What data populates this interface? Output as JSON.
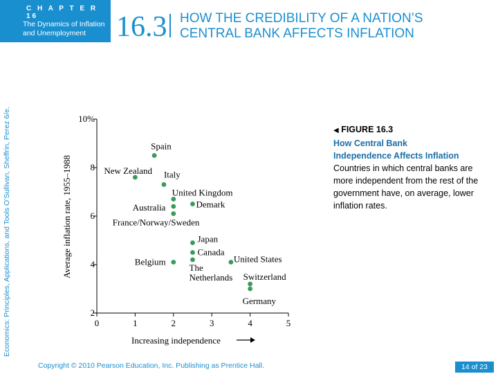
{
  "header": {
    "chapter_label": "C H A P T E R  16",
    "chapter_sub_line1": "The Dynamics of Inflation",
    "chapter_sub_line2": "and Unemployment",
    "section_number": "16.3",
    "section_title_line1": "HOW THE CREDIBILITY OF A NATION’S",
    "section_title_line2": "CENTRAL BANK AFFECTS INFLATION"
  },
  "side_text": "Economics: Principles, Applications, and Tools    O’Sullivan, Sheffrin, Perez    6/e.",
  "figure": {
    "label": "FIGURE 16.3",
    "title_line1": "How Central Bank",
    "title_line2": "Independence Affects Inflation",
    "caption": "Countries in which central banks are more independent from the rest of the government have, on average, lower inflation rates."
  },
  "footer": {
    "copyright": "Copyright © 2010  Pearson Education, Inc. Publishing as Prentice Hall.",
    "page": "14 of 23"
  },
  "colors": {
    "brand_blue": "#1a8fd0",
    "point_green": "#3a9a5a"
  },
  "chart_data": {
    "type": "scatter",
    "xlabel": "Increasing independence",
    "ylabel": "Average inflation rate, 1955–1988",
    "xlim": [
      0,
      5
    ],
    "ylim": [
      2,
      10
    ],
    "x_ticks": [
      "0",
      "1",
      "2",
      "3",
      "4",
      "5"
    ],
    "y_ticks": [
      "2",
      "4",
      "6",
      "8",
      "10%"
    ],
    "points": [
      {
        "label": "Spain",
        "x": 1.5,
        "y": 8.5
      },
      {
        "label": "New Zealand",
        "x": 1.0,
        "y": 7.6
      },
      {
        "label": "Italy",
        "x": 1.75,
        "y": 7.3
      },
      {
        "label": "United Kingdom",
        "x": 2.0,
        "y": 6.7
      },
      {
        "label": "Australia",
        "x": 2.0,
        "y": 6.4
      },
      {
        "label": "Demark",
        "x": 2.5,
        "y": 6.5
      },
      {
        "label": "France/Norway/Sweden",
        "x": 2.0,
        "y": 6.1
      },
      {
        "label": "Japan",
        "x": 2.5,
        "y": 4.9
      },
      {
        "label": "Canada",
        "x": 2.5,
        "y": 4.5
      },
      {
        "label": "Belgium",
        "x": 2.0,
        "y": 4.1
      },
      {
        "label": "The Netherlands",
        "x": 2.5,
        "y": 4.2
      },
      {
        "label": "United States",
        "x": 3.5,
        "y": 4.1
      },
      {
        "label": "Switzerland",
        "x": 4.0,
        "y": 3.2
      },
      {
        "label": "Germany",
        "x": 4.0,
        "y": 3.0
      }
    ]
  }
}
